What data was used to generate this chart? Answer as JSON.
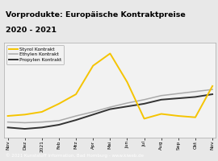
{
  "title_line1": "Vorprodukte: Europäische Kontraktpreise",
  "title_line2": "2020 - 2021",
  "title_color": "#000000",
  "title_bg": "#f5c400",
  "footer": "© 2021 Kunststoff Information, Bad Homburg - www.kiweb.de",
  "x_labels": [
    "Nov",
    "Dez",
    "2021",
    "Feb",
    "Mrz",
    "Apr",
    "Mai",
    "Jun",
    "Jul",
    "Aug",
    "Sep",
    "Okt",
    "Nov"
  ],
  "styrol": [
    310,
    320,
    340,
    400,
    470,
    680,
    770,
    560,
    290,
    325,
    310,
    300,
    530
  ],
  "ethylen": [
    265,
    260,
    265,
    275,
    310,
    340,
    375,
    405,
    430,
    460,
    475,
    490,
    505
  ],
  "propylen": [
    225,
    215,
    225,
    245,
    280,
    320,
    360,
    380,
    400,
    430,
    440,
    450,
    470
  ],
  "styrol_color": "#f5c400",
  "ethylen_color": "#aaaaaa",
  "propylen_color": "#333333",
  "bg_color": "#e8e8e8",
  "plot_bg": "#f2f2f2",
  "footer_bg": "#808080",
  "ylim": [
    150,
    850
  ],
  "legend_labels": [
    "Styrol Kontrakt",
    "Ethylen Kontrakt",
    "Propylen Kontrakt"
  ]
}
